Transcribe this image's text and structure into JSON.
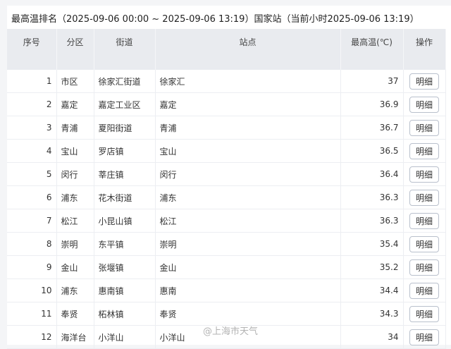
{
  "title": "最高温排名（2025-09-06 00:00 ~ 2025-09-06 13:19）国家站（当前小时2025-09-06 13:19）",
  "columns": [
    "序号",
    "分区",
    "街道",
    "站点",
    "最高温(℃)",
    "操作"
  ],
  "rows": [
    {
      "rank": "1",
      "district": "市区",
      "street": "徐家汇街道",
      "station": "徐家汇",
      "temp": "37",
      "action": "明细"
    },
    {
      "rank": "2",
      "district": "嘉定",
      "street": "嘉定工业区",
      "station": "嘉定",
      "temp": "36.9",
      "action": "明细"
    },
    {
      "rank": "3",
      "district": "青浦",
      "street": "夏阳街道",
      "station": "青浦",
      "temp": "36.7",
      "action": "明细"
    },
    {
      "rank": "4",
      "district": "宝山",
      "street": "罗店镇",
      "station": "宝山",
      "temp": "36.5",
      "action": "明细"
    },
    {
      "rank": "5",
      "district": "闵行",
      "street": "莘庄镇",
      "station": "闵行",
      "temp": "36.4",
      "action": "明细"
    },
    {
      "rank": "6",
      "district": "浦东",
      "street": "花木街道",
      "station": "浦东",
      "temp": "36.3",
      "action": "明细"
    },
    {
      "rank": "7",
      "district": "松江",
      "street": "小昆山镇",
      "station": "松江",
      "temp": "36.3",
      "action": "明细"
    },
    {
      "rank": "8",
      "district": "崇明",
      "street": "东平镇",
      "station": "崇明",
      "temp": "35.4",
      "action": "明细"
    },
    {
      "rank": "9",
      "district": "金山",
      "street": "张堰镇",
      "station": "金山",
      "temp": "35.2",
      "action": "明细"
    },
    {
      "rank": "10",
      "district": "浦东",
      "street": "惠南镇",
      "station": "惠南",
      "temp": "34.4",
      "action": "明细"
    },
    {
      "rank": "11",
      "district": "奉贤",
      "street": "柘林镇",
      "station": "奉贤",
      "temp": "34.3",
      "action": "明细"
    },
    {
      "rank": "12",
      "district": "海洋台",
      "street": "小洋山",
      "station": "小洋山",
      "temp": "34",
      "action": "明细"
    }
  ],
  "watermark": "@上海市天气"
}
